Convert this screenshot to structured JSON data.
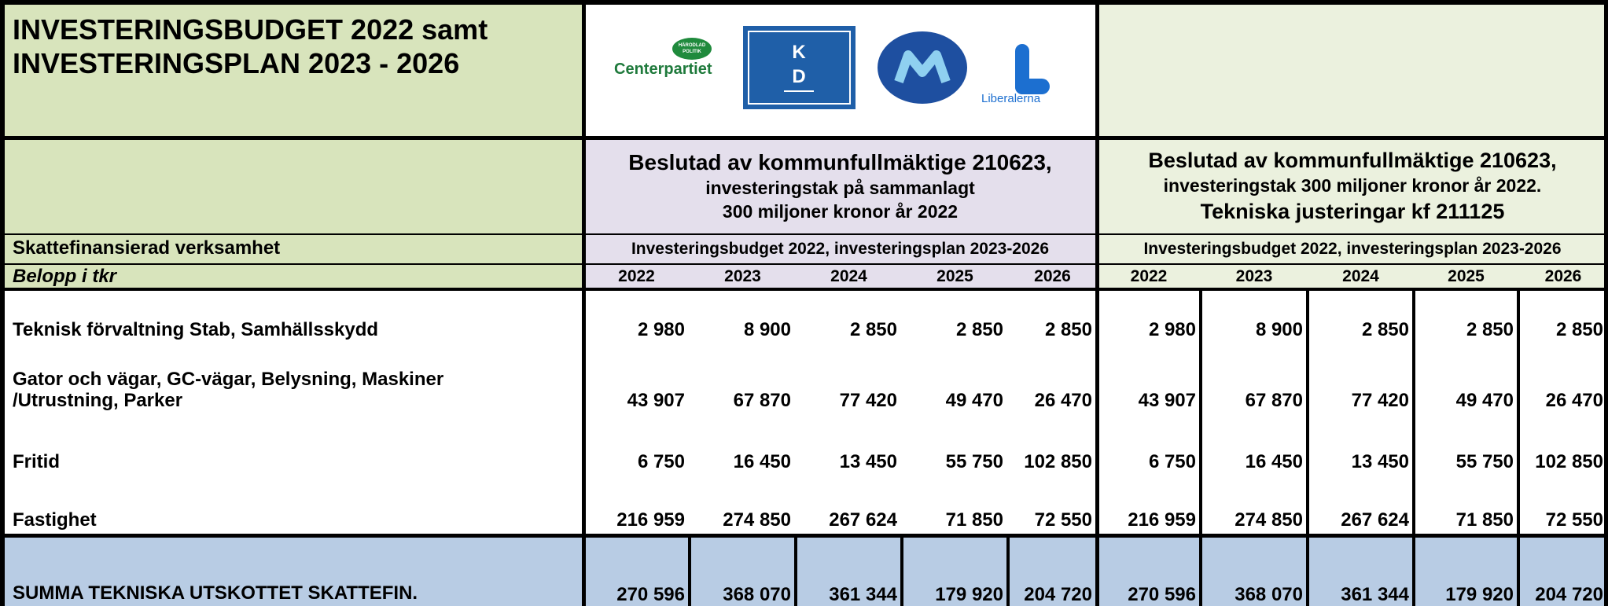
{
  "title": [
    "INVESTERINGSBUDGET 2022 samt",
    "INVESTERINGSPLAN 2023 - 2026"
  ],
  "logos": {
    "centerpartiet_badge": [
      "HÄRODLAD",
      "POLITIK"
    ],
    "centerpartiet": "Centerpartiet",
    "kd": [
      "K",
      "D"
    ],
    "liberalerna": "Liberalerna"
  },
  "section_label": "Skattefinansierad verksamhet",
  "unit_label": "Belopp i tkr",
  "groups": [
    {
      "heading": [
        "Beslutad av kommunfullmäktige 210623,",
        "investeringstak på sammanlagt",
        "300 miljoner kronor år 2022"
      ],
      "subheading": "Investeringsbudget 2022, investeringsplan 2023-2026",
      "years": [
        "2022",
        "2023",
        "2024",
        "2025",
        "2026"
      ]
    },
    {
      "heading": [
        "Beslutad av kommunfullmäktige 210623,",
        "investeringstak 300 miljoner kronor år 2022.",
        "Tekniska justeringar kf 211125"
      ],
      "subheading": "Investeringsbudget 2022, investeringsplan 2023-2026",
      "years": [
        "2022",
        "2023",
        "2024",
        "2025",
        "2026"
      ]
    }
  ],
  "table": {
    "rows": [
      {
        "label": [
          "Teknisk förvaltning Stab, Samhällsskydd"
        ],
        "values": [
          "2 980",
          "8 900",
          "2 850",
          "2 850",
          "2 850",
          "2 980",
          "8 900",
          "2 850",
          "2 850",
          "2 850"
        ]
      },
      {
        "label": [
          "Gator och vägar, GC-vägar,  Belysning, Maskiner",
          "/Utrustning, Parker"
        ],
        "values": [
          "43 907",
          "67 870",
          "77 420",
          "49 470",
          "26 470",
          "43 907",
          "67 870",
          "77 420",
          "49 470",
          "26 470"
        ]
      },
      {
        "label": [
          "Fritid"
        ],
        "values": [
          "6 750",
          "16 450",
          "13 450",
          "55 750",
          "102 850",
          "6 750",
          "16 450",
          "13 450",
          "55 750",
          "102 850"
        ]
      },
      {
        "label": [
          "Fastighet"
        ],
        "values": [
          "216 959",
          "274 850",
          "267 624",
          "71 850",
          "72 550",
          "216 959",
          "274 850",
          "267 624",
          "71 850",
          "72 550"
        ]
      }
    ],
    "total": {
      "label": [
        "SUMMA TEKNISKA UTSKOTTET SKATTEFIN."
      ],
      "values": [
        "270 596",
        "368 070",
        "361 344",
        "179 920",
        "204 720",
        "270 596",
        "368 070",
        "361 344",
        "179 920",
        "204 720"
      ]
    }
  }
}
